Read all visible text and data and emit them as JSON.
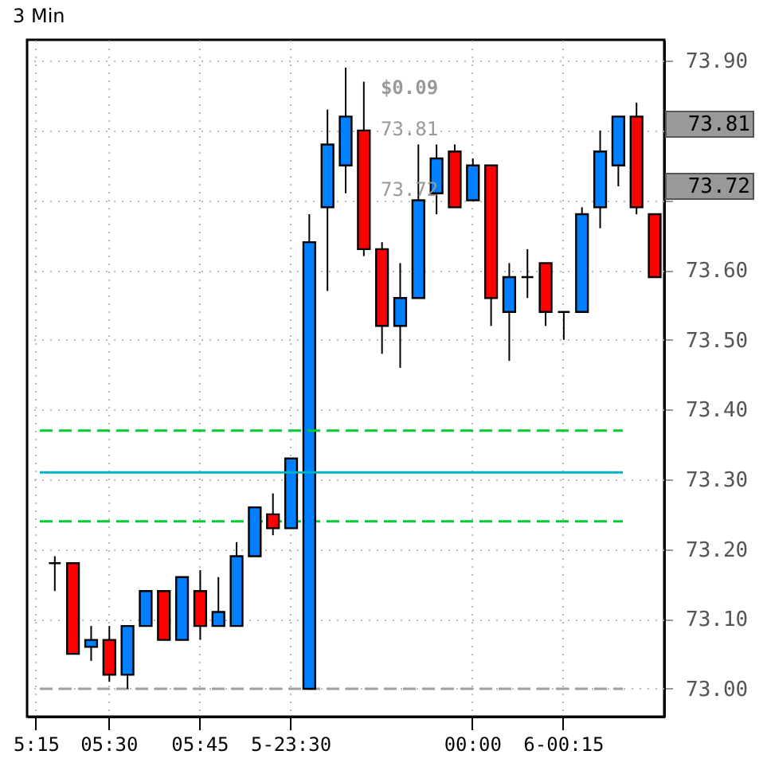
{
  "chart_data": {
    "type": "candlestick",
    "title": "3 Min",
    "categories": [
      "5:15",
      null,
      null,
      null,
      "05:30",
      null,
      null,
      null,
      null,
      "05:45",
      null,
      null,
      null,
      null,
      "5-23:30",
      null,
      null,
      null,
      null,
      null,
      null,
      null,
      null,
      null,
      "00:00",
      null,
      null,
      null,
      null,
      "6-00:15",
      null,
      null,
      null,
      null,
      null
    ],
    "ohlc": [
      null,
      [
        73.18,
        73.19,
        73.14,
        73.18
      ],
      [
        73.18,
        73.18,
        73.05,
        73.05
      ],
      [
        73.06,
        73.09,
        73.04,
        73.07
      ],
      [
        73.07,
        73.09,
        73.01,
        73.02
      ],
      [
        73.02,
        73.09,
        73.0,
        73.09
      ],
      [
        73.09,
        73.14,
        73.09,
        73.14
      ],
      [
        73.14,
        73.14,
        73.07,
        73.07
      ],
      [
        73.07,
        73.16,
        73.07,
        73.16
      ],
      [
        73.14,
        73.17,
        73.07,
        73.09
      ],
      [
        73.09,
        73.16,
        73.09,
        73.11
      ],
      [
        73.09,
        73.21,
        73.09,
        73.19
      ],
      [
        73.19,
        73.26,
        73.19,
        73.26
      ],
      [
        73.25,
        73.28,
        73.22,
        73.23
      ],
      [
        73.23,
        73.33,
        73.23,
        73.33
      ],
      [
        73.0,
        73.68,
        73.0,
        73.64
      ],
      [
        73.69,
        73.83,
        73.57,
        73.78
      ],
      [
        73.75,
        73.89,
        73.71,
        73.82
      ],
      [
        73.8,
        73.87,
        73.62,
        73.63
      ],
      [
        73.63,
        73.64,
        73.48,
        73.52
      ],
      [
        73.52,
        73.61,
        73.46,
        73.56
      ],
      [
        73.56,
        73.78,
        73.56,
        73.7
      ],
      [
        73.71,
        73.78,
        73.68,
        73.76
      ],
      [
        73.77,
        73.78,
        73.69,
        73.69
      ],
      [
        73.7,
        73.76,
        73.7,
        73.75
      ],
      [
        73.75,
        73.75,
        73.52,
        73.56
      ],
      [
        73.54,
        73.61,
        73.47,
        73.59
      ],
      [
        73.59,
        73.63,
        73.56,
        73.59
      ],
      [
        73.61,
        73.61,
        73.52,
        73.54
      ],
      [
        73.54,
        73.54,
        73.5,
        73.54
      ],
      [
        73.54,
        73.69,
        73.54,
        73.68
      ],
      [
        73.69,
        73.8,
        73.66,
        73.77
      ],
      [
        73.75,
        73.82,
        73.72,
        73.82
      ],
      [
        73.82,
        73.84,
        73.68,
        73.69
      ],
      [
        73.68,
        73.68,
        73.59,
        73.59
      ]
    ],
    "colors": [
      null,
      "#000000",
      "#ff0000",
      "#0080ff",
      "#ff0000",
      "#0080ff",
      "#0080ff",
      "#ff0000",
      "#0080ff",
      "#ff0000",
      "#0080ff",
      "#0080ff",
      "#0080ff",
      "#ff0000",
      "#0080ff",
      "#0080ff",
      "#0080ff",
      "#0080ff",
      "#ff0000",
      "#ff0000",
      "#0080ff",
      "#0080ff",
      "#0080ff",
      "#ff0000",
      "#0080ff",
      "#ff0000",
      "#0080ff",
      "#000000",
      "#ff0000",
      "#000000",
      "#0080ff",
      "#0080ff",
      "#0080ff",
      "#ff0000",
      "#ff0000"
    ],
    "ylim": [
      72.96,
      73.93
    ],
    "yticks": [
      {
        "value": 73.0,
        "label": "73.00"
      },
      {
        "value": 73.1,
        "label": "73.10"
      },
      {
        "value": 73.2,
        "label": "73.20"
      },
      {
        "value": 73.3,
        "label": "73.30"
      },
      {
        "value": 73.4,
        "label": "73.40"
      },
      {
        "value": 73.5,
        "label": "73.50"
      },
      {
        "value": 73.6,
        "label": "73.60"
      },
      {
        "value": 73.7,
        "label": null
      },
      {
        "value": 73.8,
        "label": null
      },
      {
        "value": 73.9,
        "label": "73.90"
      }
    ],
    "ref_lines": [
      {
        "axis": "y",
        "value": 73.37,
        "color": "#00cc33",
        "line_style": "dashed"
      },
      {
        "axis": "y",
        "value": 73.31,
        "color": "#00b3c0",
        "line_style": "solid"
      },
      {
        "axis": "y",
        "value": 73.24,
        "color": "#00cc33",
        "line_style": "dashed"
      },
      {
        "axis": "y",
        "value": 73.0,
        "color": "#a0a0a0",
        "line_style": "dashed"
      }
    ],
    "annotations": [
      "$0.09",
      "73.81",
      "73.72",
      "73.81",
      "73.72"
    ],
    "grid": true
  }
}
